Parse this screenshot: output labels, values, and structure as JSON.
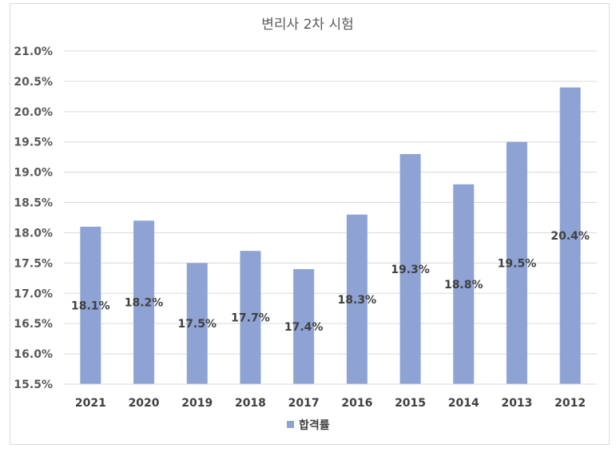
{
  "chart_data": {
    "type": "bar",
    "title": "변리사 2차 시험",
    "categories": [
      "2021",
      "2020",
      "2019",
      "2018",
      "2017",
      "2016",
      "2015",
      "2014",
      "2013",
      "2012"
    ],
    "series": [
      {
        "name": "합격률",
        "values": [
          18.1,
          18.2,
          17.5,
          17.7,
          17.4,
          18.3,
          19.3,
          18.8,
          19.5,
          20.4
        ],
        "labels": [
          "18.1%",
          "18.2%",
          "17.5%",
          "17.7%",
          "17.4%",
          "18.3%",
          "19.3%",
          "18.8%",
          "19.5%",
          "20.4%"
        ],
        "color": "#8ea3d4"
      }
    ],
    "ylim": [
      15.5,
      21.0
    ],
    "yticks": [
      "15.5%",
      "16.0%",
      "16.5%",
      "17.0%",
      "17.5%",
      "18.0%",
      "18.5%",
      "19.0%",
      "19.5%",
      "20.0%",
      "20.5%",
      "21.0%"
    ],
    "xlabel": "",
    "ylabel": "",
    "grid": true,
    "legend_position": "bottom",
    "gridColor": "#d9d9d9"
  }
}
